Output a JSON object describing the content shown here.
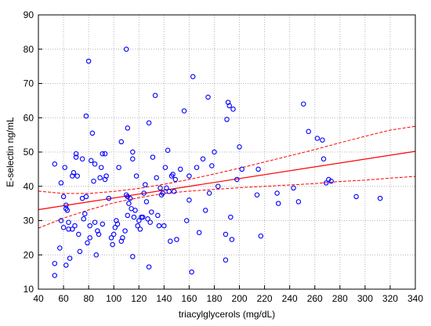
{
  "chart_data": {
    "type": "scatter",
    "xlabel": "triacylglycerols (mg/dL)",
    "ylabel": "E-selectin ng/mL",
    "xlim": [
      40,
      340
    ],
    "ylim": [
      10,
      90
    ],
    "x_ticks": [
      40,
      60,
      80,
      100,
      120,
      140,
      160,
      180,
      200,
      220,
      240,
      260,
      280,
      300,
      320,
      340
    ],
    "y_ticks": [
      10,
      20,
      30,
      40,
      50,
      60,
      70,
      80,
      90
    ],
    "grid": true,
    "colors": {
      "points": "#0000ff",
      "fit": "#ff0000",
      "ci": "#ff0000",
      "grid": "#b4b4b4"
    },
    "series": [
      {
        "marker": "open-circle",
        "points": [
          [
            53,
            14
          ],
          [
            53,
            17.5
          ],
          [
            53,
            46.5
          ],
          [
            57,
            22
          ],
          [
            58,
            41
          ],
          [
            58,
            30
          ],
          [
            60,
            28
          ],
          [
            60,
            37
          ],
          [
            61,
            45.5
          ],
          [
            62,
            33.5
          ],
          [
            62,
            34.5
          ],
          [
            62,
            17
          ],
          [
            63,
            33
          ],
          [
            64,
            27.5
          ],
          [
            64,
            29.5
          ],
          [
            65,
            19
          ],
          [
            67,
            27.5
          ],
          [
            67,
            43
          ],
          [
            68,
            44
          ],
          [
            69,
            28.5
          ],
          [
            70,
            48.5
          ],
          [
            70,
            49.5
          ],
          [
            71,
            43
          ],
          [
            72,
            26
          ],
          [
            73,
            21
          ],
          [
            75,
            48
          ],
          [
            75,
            36.5
          ],
          [
            76,
            30.5
          ],
          [
            77,
            32
          ],
          [
            78,
            60.5
          ],
          [
            78,
            37
          ],
          [
            79,
            23.5
          ],
          [
            80,
            76.5
          ],
          [
            81,
            25
          ],
          [
            81,
            28.5
          ],
          [
            82,
            47.5
          ],
          [
            83,
            55.5
          ],
          [
            84,
            41.5
          ],
          [
            85,
            46.5
          ],
          [
            85,
            29.5
          ],
          [
            86,
            20
          ],
          [
            87,
            27
          ],
          [
            88,
            26
          ],
          [
            89,
            42.5
          ],
          [
            90,
            45.5
          ],
          [
            91,
            49.5
          ],
          [
            91,
            29
          ],
          [
            93,
            42
          ],
          [
            93,
            49.5
          ],
          [
            94,
            43
          ],
          [
            96,
            36.5
          ],
          [
            98,
            25
          ],
          [
            99,
            23
          ],
          [
            100,
            26
          ],
          [
            101,
            28
          ],
          [
            102,
            30
          ],
          [
            103,
            29
          ],
          [
            104,
            45.5
          ],
          [
            106,
            53
          ],
          [
            106,
            24
          ],
          [
            107,
            25
          ],
          [
            109,
            27
          ],
          [
            110,
            80
          ],
          [
            110,
            37.5
          ],
          [
            111,
            31.5
          ],
          [
            111,
            37
          ],
          [
            111,
            57
          ],
          [
            112,
            35
          ],
          [
            113,
            36.5
          ],
          [
            114,
            33.5
          ],
          [
            115,
            50
          ],
          [
            115,
            48
          ],
          [
            115,
            19.5
          ],
          [
            116,
            31
          ],
          [
            117,
            33
          ],
          [
            118,
            43
          ],
          [
            119,
            28.5
          ],
          [
            120,
            30
          ],
          [
            121,
            27.5
          ],
          [
            122,
            31
          ],
          [
            123,
            31
          ],
          [
            124,
            38
          ],
          [
            125,
            40.5
          ],
          [
            126,
            35.5
          ],
          [
            127,
            30.5
          ],
          [
            128,
            58.5
          ],
          [
            128,
            16.5
          ],
          [
            129,
            29.5
          ],
          [
            130,
            32.5
          ],
          [
            131,
            48.5
          ],
          [
            133,
            66.5
          ],
          [
            134,
            42.5
          ],
          [
            135,
            31.5
          ],
          [
            136,
            28.5
          ],
          [
            137,
            39.5
          ],
          [
            138,
            37.5
          ],
          [
            139,
            38
          ],
          [
            140,
            28.5
          ],
          [
            141,
            45.5
          ],
          [
            142,
            39.5
          ],
          [
            143,
            50.5
          ],
          [
            144,
            38.5
          ],
          [
            145,
            24
          ],
          [
            146,
            43
          ],
          [
            147,
            43.5
          ],
          [
            148,
            38.5
          ],
          [
            149,
            42
          ],
          [
            150,
            24.5
          ],
          [
            153,
            45
          ],
          [
            156,
            62
          ],
          [
            158,
            30
          ],
          [
            160,
            43
          ],
          [
            160,
            36
          ],
          [
            162,
            15
          ],
          [
            163,
            72
          ],
          [
            166,
            45.5
          ],
          [
            168,
            26.5
          ],
          [
            171,
            48
          ],
          [
            173,
            33
          ],
          [
            175,
            66
          ],
          [
            176,
            38
          ],
          [
            178,
            46
          ],
          [
            180,
            50
          ],
          [
            183,
            40
          ],
          [
            189,
            18.5
          ],
          [
            189,
            26
          ],
          [
            190,
            59.5
          ],
          [
            191,
            64.5
          ],
          [
            192,
            63.5
          ],
          [
            193,
            31
          ],
          [
            194,
            24.5
          ],
          [
            195,
            62.5
          ],
          [
            198,
            42
          ],
          [
            200,
            51.5
          ],
          [
            202,
            45
          ],
          [
            214,
            37.5
          ],
          [
            215,
            45
          ],
          [
            217,
            25.5
          ],
          [
            230,
            38
          ],
          [
            231,
            35
          ],
          [
            243,
            39.5
          ],
          [
            247,
            35.5
          ],
          [
            251,
            64
          ],
          [
            255,
            56
          ],
          [
            262,
            54
          ],
          [
            266,
            53.5
          ],
          [
            267,
            48
          ],
          [
            269,
            41
          ],
          [
            271,
            42
          ],
          [
            273,
            41.5
          ],
          [
            293,
            37
          ],
          [
            312,
            36.5
          ]
        ]
      }
    ],
    "fit_line": {
      "x": [
        40,
        340
      ],
      "y": [
        33.2,
        50.2
      ]
    },
    "confidence_band": {
      "upper": {
        "x": [
          40,
          60,
          80,
          100,
          120,
          140,
          160,
          180,
          200,
          220,
          240,
          260,
          280,
          300,
          320,
          340
        ],
        "y": [
          38.6,
          37.9,
          37.9,
          38.5,
          39.4,
          40.6,
          42.0,
          43.6,
          45.3,
          47.1,
          48.9,
          50.7,
          52.7,
          54.6,
          56.4,
          57.5
        ]
      },
      "lower": {
        "x": [
          40,
          60,
          80,
          100,
          120,
          140,
          160,
          180,
          200,
          220,
          240,
          260,
          280,
          300,
          320,
          340
        ],
        "y": [
          27.8,
          30.7,
          33.1,
          35.2,
          36.7,
          37.9,
          38.6,
          39.1,
          39.6,
          40.0,
          40.4,
          40.8,
          41.4,
          41.8,
          42.4,
          42.9
        ]
      }
    }
  }
}
